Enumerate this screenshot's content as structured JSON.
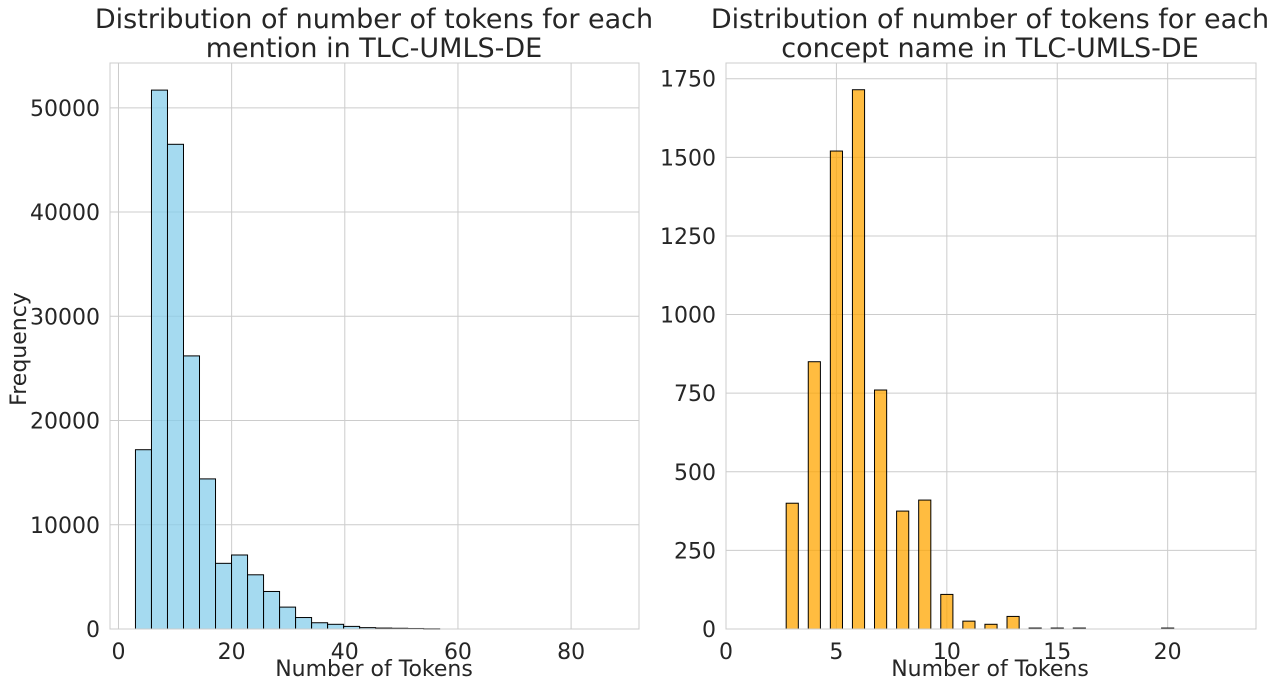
{
  "chart_data": [
    {
      "type": "bar",
      "subtype": "histogram",
      "title": "Distribution of number of tokens for each mention in TLC-UMLS-DE",
      "title_lines": [
        "Distribution of number of tokens for each",
        "mention in TLC-UMLS-DE"
      ],
      "xlabel": "Number of Tokens",
      "ylabel": "Frequency",
      "xlim": [
        -1.5,
        92
      ],
      "ylim": [
        0,
        54300
      ],
      "xticks": [
        0,
        20,
        40,
        60,
        80
      ],
      "yticks": [
        0,
        10000,
        20000,
        30000,
        40000,
        50000
      ],
      "grid": true,
      "bar_color": "#87ceeb",
      "bar_opacity": 0.75,
      "bin_width": 2.83,
      "bin_start": 3,
      "values": [
        17200,
        51700,
        46500,
        26200,
        14400,
        6300,
        7100,
        5200,
        3600,
        2100,
        1100,
        600,
        450,
        250,
        130,
        90,
        70,
        50,
        30,
        0,
        0,
        0,
        0,
        0,
        0,
        0,
        0,
        0,
        0,
        0
      ]
    },
    {
      "type": "bar",
      "subtype": "histogram",
      "title": "Distribution of number of tokens for each concept name in TLC-UMLS-DE",
      "title_lines": [
        "Distribution of number of tokens for each",
        "concept name in TLC-UMLS-DE"
      ],
      "xlabel": "Number of Tokens",
      "ylabel": "",
      "xlim": [
        0,
        24
      ],
      "ylim": [
        0,
        1800
      ],
      "xticks": [
        0,
        5,
        10,
        15,
        20
      ],
      "yticks": [
        0,
        250,
        500,
        750,
        1000,
        1250,
        1500,
        1750
      ],
      "grid": true,
      "bar_color": "#ffa500",
      "bar_opacity": 0.75,
      "bar_width": 0.55,
      "x": [
        3,
        4,
        5,
        6,
        7,
        8,
        9,
        10,
        11,
        12,
        13,
        14,
        15,
        16,
        20
      ],
      "values": [
        400,
        850,
        1520,
        1715,
        760,
        375,
        410,
        110,
        25,
        15,
        40,
        3,
        3,
        3,
        3
      ]
    }
  ]
}
